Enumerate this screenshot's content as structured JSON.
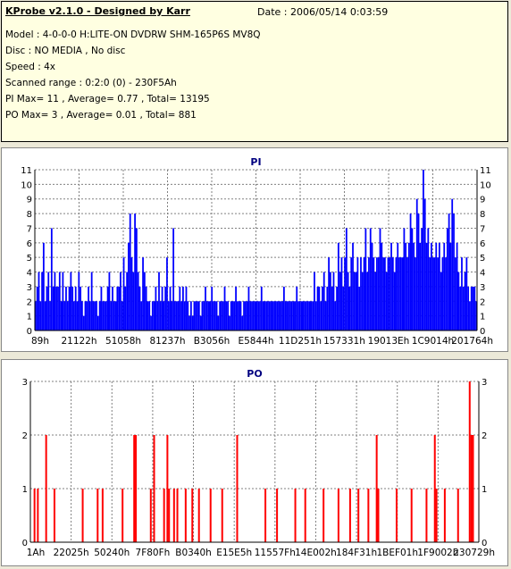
{
  "header": {
    "title": "KProbe v2.1.0 - Designed by Karr",
    "date": "Date : 2006/05/14 0:03:59",
    "lines": [
      "Model : 4-0-0-0 H:LITE-ON DVDRW SHM-165P6S MV8Q",
      "Disc : NO MEDIA , No disc",
      "Speed : 4x",
      "Scanned range : 0:2:0 (0) - 230F5Ah",
      "PI Max= 11 , Average= 0.77 , Total= 13195",
      "PO Max= 3 , Average= 0.01 , Total= 881"
    ]
  },
  "colors": {
    "pi": "#0000FF",
    "po": "#FF0000",
    "grid": "#808080",
    "background": "#ECE9D8",
    "info_bg": "#FFFFE1"
  },
  "chart_data": [
    {
      "type": "bar",
      "title": "PI",
      "xlabel": "",
      "ylabel": "",
      "ylim": [
        0,
        11
      ],
      "yticks": [
        0,
        1,
        2,
        3,
        4,
        5,
        6,
        7,
        8,
        9,
        10,
        11
      ],
      "xtick_labels": [
        "89h",
        "21122h",
        "51058h",
        "81237h",
        "B3056h",
        "E5844h",
        "11D251h",
        "157331h",
        "19013Eh",
        "1C9014h",
        "201764h"
      ],
      "grid": true,
      "series": [
        {
          "color": "#0000FF",
          "values": [
            2,
            3,
            4,
            2,
            4,
            6,
            2,
            3,
            4,
            2,
            7,
            3,
            4,
            3,
            3,
            4,
            2,
            4,
            2,
            3,
            2,
            3,
            4,
            3,
            2,
            3,
            2,
            4,
            3,
            2,
            1,
            2,
            2,
            3,
            2,
            4,
            2,
            2,
            2,
            1,
            2,
            3,
            2,
            2,
            2,
            3,
            4,
            2,
            3,
            2,
            2,
            3,
            3,
            4,
            2,
            5,
            3,
            4,
            6,
            8,
            5,
            4,
            8,
            7,
            4,
            3,
            2,
            5,
            4,
            3,
            2,
            2,
            1,
            2,
            2,
            3,
            2,
            4,
            2,
            3,
            2,
            3,
            5,
            2,
            3,
            2,
            7,
            2,
            2,
            2,
            3,
            2,
            3,
            2,
            3,
            2,
            1,
            2,
            1,
            2,
            2,
            2,
            2,
            1,
            2,
            2,
            3,
            2,
            2,
            2,
            3,
            2,
            2,
            2,
            1,
            2,
            2,
            2,
            3,
            2,
            2,
            1,
            2,
            2,
            2,
            3,
            2,
            2,
            2,
            1,
            2,
            2,
            2,
            3,
            2,
            2,
            2,
            2,
            2,
            2,
            2,
            3,
            2,
            2,
            2,
            2,
            2,
            2,
            2,
            2,
            2,
            2,
            2,
            2,
            2,
            3,
            2,
            2,
            2,
            2,
            2,
            2,
            2,
            3,
            2,
            2,
            2,
            2,
            2,
            2,
            2,
            2,
            2,
            2,
            4,
            2,
            3,
            3,
            2,
            3,
            4,
            2,
            3,
            5,
            4,
            3,
            4,
            2,
            3,
            6,
            4,
            5,
            3,
            5,
            7,
            4,
            3,
            5,
            6,
            4,
            4,
            5,
            3,
            5,
            4,
            5,
            7,
            4,
            5,
            7,
            6,
            5,
            4,
            5,
            5,
            7,
            6,
            5,
            5,
            4,
            5,
            5,
            6,
            5,
            4,
            5,
            6,
            5,
            5,
            5,
            7,
            6,
            5,
            6,
            8,
            7,
            6,
            5,
            9,
            8,
            6,
            7,
            11,
            9,
            6,
            7,
            5,
            6,
            5,
            5,
            6,
            5,
            6,
            4,
            5,
            6,
            5,
            7,
            8,
            6,
            9,
            8,
            5,
            6,
            4,
            3,
            5,
            3,
            4,
            5,
            3,
            2,
            3,
            3,
            3,
            2
          ]
        }
      ]
    },
    {
      "type": "bar",
      "title": "PO",
      "xlabel": "",
      "ylabel": "",
      "ylim": [
        0,
        3
      ],
      "yticks": [
        0,
        1,
        2,
        3
      ],
      "xtick_labels": [
        "1Ah",
        "22025h",
        "50240h",
        "7F80Fh",
        "B0340h",
        "E15E5h",
        "11557Fh",
        "14E002h",
        "184F31h",
        "1BEF01h",
        "1F9002h",
        "230729h"
      ],
      "grid": true,
      "series": [
        {
          "color": "#FF0000",
          "points": [
            [
              2,
              1
            ],
            [
              4,
              1
            ],
            [
              9,
              2
            ],
            [
              14,
              1
            ],
            [
              31,
              1
            ],
            [
              40,
              1
            ],
            [
              43,
              1
            ],
            [
              55,
              1
            ],
            [
              62,
              2
            ],
            [
              63,
              2
            ],
            [
              72,
              1
            ],
            [
              74,
              2
            ],
            [
              80,
              1
            ],
            [
              82,
              2
            ],
            [
              83,
              1
            ],
            [
              86,
              1
            ],
            [
              88,
              1
            ],
            [
              93,
              1
            ],
            [
              97,
              1
            ],
            [
              101,
              1
            ],
            [
              108,
              1
            ],
            [
              115,
              1
            ],
            [
              124,
              2
            ],
            [
              141,
              1
            ],
            [
              148,
              1
            ],
            [
              159,
              1
            ],
            [
              165,
              1
            ],
            [
              176,
              1
            ],
            [
              185,
              1
            ],
            [
              192,
              1
            ],
            [
              197,
              1
            ],
            [
              203,
              1
            ],
            [
              208,
              2
            ],
            [
              209,
              1
            ],
            [
              220,
              1
            ],
            [
              229,
              1
            ],
            [
              238,
              1
            ],
            [
              243,
              2
            ],
            [
              244,
              1
            ],
            [
              249,
              1
            ],
            [
              257,
              1
            ],
            [
              264,
              3
            ],
            [
              265,
              2
            ],
            [
              266,
              2
            ]
          ]
        }
      ]
    }
  ]
}
